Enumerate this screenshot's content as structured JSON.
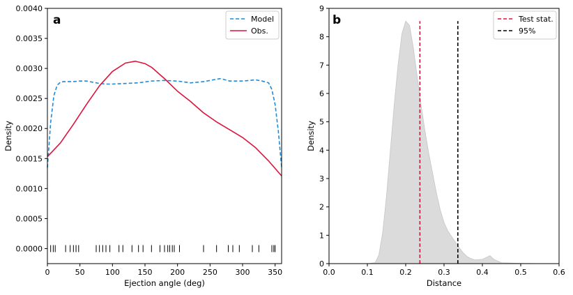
{
  "chart_data": [
    {
      "panel": "a",
      "type": "line",
      "panel_label": "a",
      "xlabel": "Ejection angle (deg)",
      "ylabel": "Density",
      "xlim": [
        0,
        360
      ],
      "ylim": [
        -0.00025,
        0.004
      ],
      "xticks": [
        0,
        50,
        100,
        150,
        200,
        250,
        300,
        350
      ],
      "yticks": [
        0.0,
        0.0005,
        0.001,
        0.0015,
        0.002,
        0.0025,
        0.003,
        0.0035,
        0.004
      ],
      "ytick_labels": [
        "0.0000",
        "0.0005",
        "0.0010",
        "0.0015",
        "0.0020",
        "0.0025",
        "0.0030",
        "0.0035",
        "0.0040"
      ],
      "legend": {
        "placement": "top-right",
        "entries": [
          "Model",
          "Obs."
        ]
      },
      "series": [
        {
          "name": "Model",
          "style": "dashed",
          "color": "#1f8ad6",
          "x": [
            0,
            5,
            10,
            15,
            20,
            25,
            30,
            40,
            50,
            60,
            70,
            80,
            90,
            100,
            120,
            140,
            160,
            180,
            200,
            220,
            240,
            260,
            265,
            270,
            280,
            300,
            320,
            330,
            340,
            345,
            350,
            355,
            360
          ],
          "y": [
            0.00135,
            0.0021,
            0.00255,
            0.00272,
            0.00277,
            0.00278,
            0.00278,
            0.00278,
            0.00279,
            0.00279,
            0.00277,
            0.00275,
            0.00274,
            0.00274,
            0.00275,
            0.00276,
            0.00279,
            0.0028,
            0.00279,
            0.00276,
            0.00278,
            0.00282,
            0.00283,
            0.00282,
            0.00279,
            0.00279,
            0.00281,
            0.00279,
            0.00276,
            0.00265,
            0.0024,
            0.00195,
            0.00135
          ]
        },
        {
          "name": "Obs.",
          "style": "solid",
          "color": "#dc143c",
          "x": [
            0,
            20,
            40,
            60,
            80,
            100,
            120,
            135,
            150,
            160,
            180,
            200,
            220,
            240,
            260,
            280,
            300,
            320,
            340,
            360
          ],
          "y": [
            0.00153,
            0.00176,
            0.00207,
            0.0024,
            0.00271,
            0.00295,
            0.00309,
            0.00312,
            0.00308,
            0.00302,
            0.00283,
            0.00262,
            0.00245,
            0.00226,
            0.00211,
            0.00198,
            0.00185,
            0.00168,
            0.00146,
            0.00121
          ]
        }
      ],
      "rug_positions": [
        5,
        9,
        12,
        28,
        35,
        40,
        44,
        48,
        75,
        80,
        85,
        90,
        96,
        110,
        116,
        130,
        140,
        147,
        160,
        173,
        180,
        185,
        188,
        192,
        195,
        203,
        240,
        260,
        278,
        285,
        295,
        315,
        325,
        345,
        348,
        350
      ]
    },
    {
      "panel": "b",
      "type": "area",
      "panel_label": "b",
      "xlabel": "Distance",
      "ylabel": "Density",
      "xlim": [
        0.0,
        0.6
      ],
      "ylim": [
        0,
        9
      ],
      "xticks": [
        0.0,
        0.1,
        0.2,
        0.3,
        0.4,
        0.5,
        0.6
      ],
      "xtick_labels": [
        "0.0",
        "0.1",
        "0.2",
        "0.3",
        "0.4",
        "0.5",
        "0.6"
      ],
      "yticks": [
        0,
        1,
        2,
        3,
        4,
        5,
        6,
        7,
        8,
        9
      ],
      "ytick_labels": [
        "0",
        "1",
        "2",
        "3",
        "4",
        "5",
        "6",
        "7",
        "8",
        "9"
      ],
      "legend": {
        "placement": "top-right",
        "entries": [
          "Test stat.",
          "95%"
        ]
      },
      "density": {
        "color": "#d9d9d9",
        "x": [
          0.1,
          0.12,
          0.13,
          0.14,
          0.15,
          0.16,
          0.17,
          0.18,
          0.19,
          0.2,
          0.21,
          0.22,
          0.23,
          0.24,
          0.25,
          0.26,
          0.27,
          0.28,
          0.29,
          0.3,
          0.31,
          0.32,
          0.33,
          0.34,
          0.35,
          0.36,
          0.37,
          0.38,
          0.4,
          0.42,
          0.43,
          0.45,
          0.5,
          0.55
        ],
        "y": [
          0.0,
          0.03,
          0.3,
          1.1,
          2.4,
          4.0,
          5.6,
          7.0,
          8.1,
          8.55,
          8.4,
          7.6,
          6.6,
          5.6,
          4.7,
          3.9,
          3.2,
          2.5,
          1.9,
          1.45,
          1.15,
          0.95,
          0.75,
          0.55,
          0.38,
          0.25,
          0.18,
          0.13,
          0.15,
          0.28,
          0.15,
          0.03,
          0.01,
          0.0
        ]
      },
      "vlines": [
        {
          "name": "Test stat.",
          "x": 0.237,
          "ymax": 8.55,
          "color": "#dc143c"
        },
        {
          "name": "95%",
          "x": 0.336,
          "ymax": 8.55,
          "color": "#000000"
        }
      ]
    }
  ]
}
